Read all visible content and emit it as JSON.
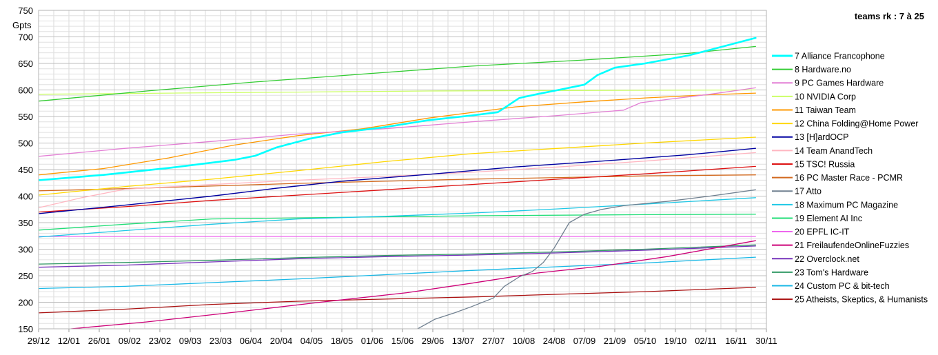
{
  "chart_data": {
    "type": "line",
    "title": "teams rk : 7 à 25",
    "ylabel": "Gpts",
    "xlabel": "",
    "ylim": [
      150,
      750
    ],
    "yticks": [
      150,
      200,
      250,
      300,
      350,
      400,
      450,
      500,
      550,
      600,
      650,
      700,
      750
    ],
    "xlim": [
      0,
      336
    ],
    "x_tick_labels": [
      "29/12",
      "12/01",
      "26/01",
      "09/02",
      "23/02",
      "09/03",
      "23/03",
      "06/04",
      "20/04",
      "04/05",
      "18/05",
      "01/06",
      "15/06",
      "29/06",
      "13/07",
      "27/07",
      "10/08",
      "24/08",
      "07/09",
      "21/09",
      "05/10",
      "19/10",
      "02/11",
      "16/11",
      "30/11"
    ],
    "x_tick_step_days": 14,
    "grid": true,
    "legend_position": "right",
    "series": [
      {
        "name": "7 Alliance Francophone",
        "color": "#00ffff",
        "width": 2.6,
        "points": [
          [
            0,
            430
          ],
          [
            30,
            440
          ],
          [
            60,
            453
          ],
          [
            90,
            468
          ],
          [
            100,
            476
          ],
          [
            110,
            492
          ],
          [
            125,
            508
          ],
          [
            140,
            520
          ],
          [
            160,
            530
          ],
          [
            180,
            543
          ],
          [
            200,
            552
          ],
          [
            212,
            558
          ],
          [
            222,
            585
          ],
          [
            230,
            592
          ],
          [
            240,
            600
          ],
          [
            252,
            610
          ],
          [
            258,
            628
          ],
          [
            266,
            642
          ],
          [
            280,
            650
          ],
          [
            300,
            665
          ],
          [
            318,
            684
          ],
          [
            331,
            698
          ]
        ]
      },
      {
        "name": "8 Hardware.no",
        "color": "#33cc33",
        "width": 1.3,
        "points": [
          [
            0,
            579
          ],
          [
            50,
            598
          ],
          [
            100,
            615
          ],
          [
            150,
            630
          ],
          [
            200,
            645
          ],
          [
            250,
            656
          ],
          [
            300,
            669
          ],
          [
            331,
            682
          ]
        ]
      },
      {
        "name": "9 PC Games Hardware",
        "color": "#e37fd5",
        "width": 1.3,
        "points": [
          [
            0,
            475
          ],
          [
            40,
            490
          ],
          [
            80,
            503
          ],
          [
            120,
            517
          ],
          [
            160,
            527
          ],
          [
            200,
            540
          ],
          [
            240,
            552
          ],
          [
            270,
            562
          ],
          [
            278,
            576
          ],
          [
            290,
            582
          ],
          [
            310,
            592
          ],
          [
            331,
            604
          ]
        ]
      },
      {
        "name": "10 NVIDIA Corp",
        "color": "#ccff66",
        "width": 1.3,
        "points": [
          [
            0,
            592
          ],
          [
            60,
            594
          ],
          [
            120,
            596
          ],
          [
            180,
            598
          ],
          [
            240,
            599
          ],
          [
            331,
            600
          ]
        ]
      },
      {
        "name": "11 Taiwan Team",
        "color": "#ff9900",
        "width": 1.3,
        "points": [
          [
            0,
            440
          ],
          [
            30,
            452
          ],
          [
            60,
            472
          ],
          [
            90,
            496
          ],
          [
            120,
            514
          ],
          [
            150,
            527
          ],
          [
            180,
            547
          ],
          [
            220,
            568
          ],
          [
            250,
            577
          ],
          [
            280,
            585
          ],
          [
            310,
            591
          ],
          [
            331,
            594
          ]
        ]
      },
      {
        "name": "12 China Folding@Home Power",
        "color": "#ffd700",
        "width": 1.3,
        "points": [
          [
            0,
            402
          ],
          [
            40,
            418
          ],
          [
            80,
            432
          ],
          [
            120,
            448
          ],
          [
            160,
            465
          ],
          [
            200,
            480
          ],
          [
            240,
            490
          ],
          [
            280,
            500
          ],
          [
            331,
            511
          ]
        ]
      },
      {
        "name": "13 [H]ardOCP",
        "color": "#0000a0",
        "width": 1.4,
        "points": [
          [
            0,
            367
          ],
          [
            40,
            383
          ],
          [
            80,
            400
          ],
          [
            110,
            415
          ],
          [
            140,
            428
          ],
          [
            180,
            441
          ],
          [
            220,
            455
          ],
          [
            260,
            466
          ],
          [
            300,
            478
          ],
          [
            331,
            490
          ]
        ]
      },
      {
        "name": "14 Team AnandTech",
        "color": "#ffb6c1",
        "width": 1.3,
        "points": [
          [
            0,
            378
          ],
          [
            20,
            397
          ],
          [
            40,
            413
          ],
          [
            80,
            422
          ],
          [
            120,
            430
          ],
          [
            160,
            437
          ],
          [
            200,
            445
          ],
          [
            240,
            455
          ],
          [
            280,
            466
          ],
          [
            331,
            482
          ]
        ]
      },
      {
        "name": "15 TSC! Russia",
        "color": "#dd1111",
        "width": 1.3,
        "points": [
          [
            0,
            370
          ],
          [
            40,
            380
          ],
          [
            80,
            392
          ],
          [
            120,
            402
          ],
          [
            160,
            412
          ],
          [
            200,
            422
          ],
          [
            240,
            432
          ],
          [
            280,
            442
          ],
          [
            331,
            456
          ]
        ]
      },
      {
        "name": "16 PC Master Race - PCMR",
        "color": "#d2691e",
        "width": 1.3,
        "points": [
          [
            0,
            410
          ],
          [
            40,
            414
          ],
          [
            80,
            419
          ],
          [
            120,
            424
          ],
          [
            160,
            428
          ],
          [
            200,
            432
          ],
          [
            240,
            435
          ],
          [
            280,
            438
          ],
          [
            331,
            440
          ]
        ]
      },
      {
        "name": "17 Atto",
        "color": "#708090",
        "width": 1.3,
        "points": [
          [
            175,
            150
          ],
          [
            183,
            168
          ],
          [
            192,
            180
          ],
          [
            200,
            192
          ],
          [
            210,
            208
          ],
          [
            215,
            230
          ],
          [
            222,
            248
          ],
          [
            228,
            258
          ],
          [
            233,
            275
          ],
          [
            238,
            302
          ],
          [
            245,
            350
          ],
          [
            252,
            366
          ],
          [
            260,
            375
          ],
          [
            270,
            382
          ],
          [
            290,
            390
          ],
          [
            310,
            400
          ],
          [
            331,
            412
          ]
        ]
      },
      {
        "name": "18 Maximum PC Magazine",
        "color": "#1ec8e6",
        "width": 1.3,
        "points": [
          [
            0,
            323
          ],
          [
            40,
            335
          ],
          [
            80,
            347
          ],
          [
            120,
            357
          ],
          [
            160,
            362
          ],
          [
            200,
            368
          ],
          [
            240,
            376
          ],
          [
            280,
            385
          ],
          [
            331,
            397
          ]
        ]
      },
      {
        "name": "19 Element AI Inc",
        "color": "#22dd77",
        "width": 1.3,
        "points": [
          [
            0,
            336
          ],
          [
            40,
            347
          ],
          [
            80,
            357
          ],
          [
            120,
            359
          ],
          [
            160,
            361
          ],
          [
            200,
            363
          ],
          [
            240,
            364
          ],
          [
            280,
            365
          ],
          [
            331,
            366
          ]
        ]
      },
      {
        "name": "20 EPFL IC-IT",
        "color": "#ee66ee",
        "width": 1.3,
        "points": [
          [
            0,
            324
          ],
          [
            331,
            324
          ]
        ]
      },
      {
        "name": "21 FreilaufendeOnlineFuzzies",
        "color": "#cc0077",
        "width": 1.3,
        "points": [
          [
            15,
            150
          ],
          [
            50,
            163
          ],
          [
            90,
            181
          ],
          [
            130,
            200
          ],
          [
            170,
            218
          ],
          [
            200,
            236
          ],
          [
            230,
            255
          ],
          [
            260,
            268
          ],
          [
            290,
            286
          ],
          [
            331,
            316
          ]
        ]
      },
      {
        "name": "22 Overclock.net",
        "color": "#7733bb",
        "width": 1.3,
        "points": [
          [
            0,
            266
          ],
          [
            40,
            270
          ],
          [
            80,
            276
          ],
          [
            120,
            282
          ],
          [
            160,
            286
          ],
          [
            200,
            289
          ],
          [
            240,
            293
          ],
          [
            280,
            298
          ],
          [
            331,
            306
          ]
        ]
      },
      {
        "name": "23 Tom's Hardware",
        "color": "#339966",
        "width": 1.3,
        "points": [
          [
            0,
            272
          ],
          [
            40,
            275
          ],
          [
            80,
            279
          ],
          [
            120,
            284
          ],
          [
            160,
            288
          ],
          [
            200,
            291
          ],
          [
            240,
            295
          ],
          [
            280,
            300
          ],
          [
            331,
            308
          ]
        ]
      },
      {
        "name": "24 Custom PC & bit-tech",
        "color": "#1ab8e6",
        "width": 1.3,
        "points": [
          [
            0,
            226
          ],
          [
            40,
            230
          ],
          [
            80,
            237
          ],
          [
            120,
            244
          ],
          [
            160,
            252
          ],
          [
            200,
            260
          ],
          [
            240,
            267
          ],
          [
            280,
            274
          ],
          [
            331,
            285
          ]
        ]
      },
      {
        "name": "25 Atheists, Skeptics, & Humanists",
        "color": "#aa1111",
        "width": 1.3,
        "points": [
          [
            0,
            180
          ],
          [
            40,
            187
          ],
          [
            80,
            196
          ],
          [
            120,
            202
          ],
          [
            160,
            206
          ],
          [
            200,
            210
          ],
          [
            240,
            215
          ],
          [
            280,
            220
          ],
          [
            331,
            228
          ]
        ]
      }
    ]
  }
}
